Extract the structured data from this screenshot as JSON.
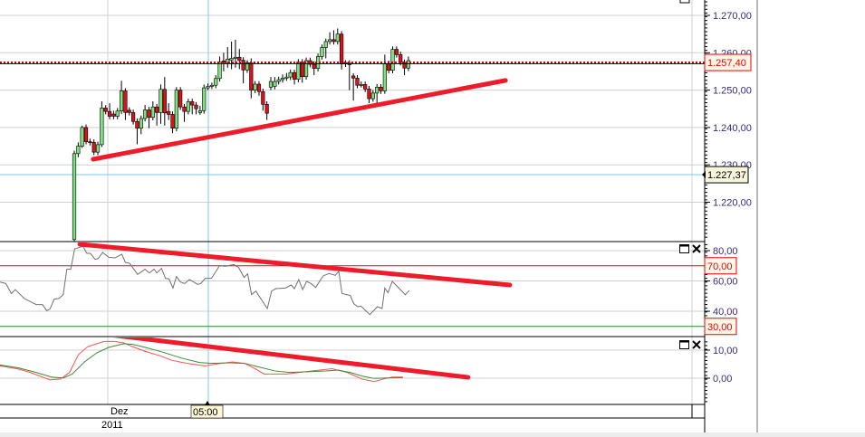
{
  "colors": {
    "up_candle": "#80e080",
    "down_candle": "#e0101a",
    "trendline": "#ee1c2a",
    "last_price_line": "#cc0000",
    "crosshair": "#7ec8ea",
    "rsi_line": "#707070",
    "rsi_upper": "#ee0000",
    "rsi_lower": "#228b22",
    "macd_line": "#ff5050",
    "signal_line": "#3a8a3a",
    "tick_text": "#3a2a7a",
    "grid": "#d0d0d0"
  },
  "icons": {
    "maximize": "maximize-icon",
    "close": "close-icon"
  },
  "xaxis": {
    "month_label": "Dez",
    "crosshair_time": "05:00",
    "year_label": "2011"
  },
  "chart_data": [
    {
      "type": "candlestick",
      "title": "",
      "x": "bar index",
      "ylim": [
        1210,
        1275
      ],
      "grid": true,
      "yticks": [
        {
          "value": 1270,
          "label": "1.270,00"
        },
        {
          "value": 1260,
          "label": "1.260,00"
        },
        {
          "value": 1250,
          "label": "1.250,00"
        },
        {
          "value": 1240,
          "label": "1.240,00"
        },
        {
          "value": 1230,
          "label": "1.230,00"
        },
        {
          "value": 1220,
          "label": "1.220,00"
        }
      ],
      "last_price": {
        "value": 1257.4,
        "label": "1.257,40"
      },
      "crosshair_price": {
        "value": 1227.37,
        "label": "1.227,37"
      },
      "trendline": {
        "from": [
          4.8,
          1231.5
        ],
        "to": [
          109.7,
          1252.6
        ]
      },
      "ohlc": [
        [
          1210,
          1233.8,
          1209,
          1233
        ],
        [
          1233,
          1236,
          1232,
          1235
        ],
        [
          1235,
          1240.5,
          1234.5,
          1240
        ],
        [
          1240,
          1240.8,
          1235.5,
          1236.2
        ],
        [
          1236.2,
          1237,
          1235.2,
          1236
        ],
        [
          1236,
          1236.8,
          1232.6,
          1233.4
        ],
        [
          1233.4,
          1236.2,
          1232.6,
          1235.4
        ],
        [
          1235.4,
          1247,
          1234.8,
          1245.2
        ],
        [
          1245.2,
          1246,
          1243.5,
          1244.3
        ],
        [
          1244.3,
          1246.5,
          1242.2,
          1243
        ],
        [
          1243.6,
          1244.5,
          1242.2,
          1243
        ],
        [
          1243,
          1245.2,
          1242.2,
          1244.4
        ],
        [
          1244.4,
          1252.5,
          1243.6,
          1249.8
        ],
        [
          1249.8,
          1250.5,
          1242,
          1244
        ],
        [
          1244.6,
          1245.4,
          1243.2,
          1244
        ],
        [
          1244,
          1244.8,
          1240.8,
          1241.6
        ],
        [
          1241.6,
          1242.4,
          1235.5,
          1239.8
        ],
        [
          1239.8,
          1243.2,
          1238.2,
          1242.4
        ],
        [
          1242.4,
          1246,
          1241.6,
          1244.7
        ],
        [
          1244.7,
          1245.5,
          1239.8,
          1242.7
        ],
        [
          1242.7,
          1247,
          1241.9,
          1245.5
        ],
        [
          1245.5,
          1246.3,
          1240.5,
          1244
        ],
        [
          1244,
          1251.5,
          1241,
          1250.2
        ],
        [
          1250.2,
          1253.5,
          1240.5,
          1243.9
        ],
        [
          1244.3,
          1246.5,
          1242,
          1243.5
        ],
        [
          1243.5,
          1244.3,
          1238.5,
          1239.8
        ],
        [
          1239.8,
          1250.8,
          1239,
          1250
        ],
        [
          1250,
          1250.8,
          1244.7,
          1245.5
        ],
        [
          1245.5,
          1246.3,
          1241.5,
          1244.3
        ],
        [
          1244.3,
          1247.7,
          1243.5,
          1246.9
        ],
        [
          1246.9,
          1247.7,
          1243.5,
          1246
        ],
        [
          1246,
          1246.8,
          1243.5,
          1245
        ],
        [
          1244,
          1245.8,
          1243.4,
          1244.5
        ],
        [
          1244.5,
          1251.5,
          1243.7,
          1250.6
        ],
        [
          1250.6,
          1251.8,
          1250,
          1251
        ],
        [
          1251,
          1252,
          1250.3,
          1251.3
        ],
        [
          1251.3,
          1254,
          1250.5,
          1253.1
        ],
        [
          1253.1,
          1259,
          1252.3,
          1257.5
        ],
        [
          1257.8,
          1260,
          1255,
          1257.4
        ],
        [
          1257.4,
          1261.5,
          1256,
          1258.3
        ],
        [
          1258,
          1263,
          1255.6,
          1258.5
        ],
        [
          1258.5,
          1263.5,
          1256,
          1258.8
        ],
        [
          1258.8,
          1261,
          1255.6,
          1258
        ],
        [
          1258,
          1258.8,
          1251.8,
          1255.4
        ],
        [
          1255.4,
          1258,
          1254.6,
          1257.3
        ],
        [
          1257.3,
          1258.5,
          1247.8,
          1250
        ],
        [
          1250,
          1252.4,
          1249.2,
          1251.6
        ],
        [
          1251.6,
          1252.4,
          1248.5,
          1249.6
        ],
        [
          1249.6,
          1250.4,
          1244.5,
          1246.2
        ],
        [
          1246.2,
          1247,
          1242,
          1243.8
        ],
        [
          1250.8,
          1253.5,
          1250,
          1252.3
        ],
        [
          1251,
          1253.5,
          1250.2,
          1252.3
        ],
        [
          1252.3,
          1253.6,
          1251.5,
          1252.8
        ],
        [
          1252.8,
          1254.2,
          1252,
          1253.2
        ],
        [
          1253.2,
          1254.6,
          1252.5,
          1253.5
        ],
        [
          1253.5,
          1255.5,
          1252.7,
          1254.7
        ],
        [
          1254.7,
          1255.5,
          1251.5,
          1252.9
        ],
        [
          1252.9,
          1258.3,
          1252.1,
          1257.5
        ],
        [
          1257.5,
          1258.3,
          1252,
          1253.6
        ],
        [
          1253.6,
          1258.7,
          1252.8,
          1257.9
        ],
        [
          1257.9,
          1258.7,
          1256.1,
          1256.9
        ],
        [
          1256.9,
          1257.7,
          1254,
          1255.8
        ],
        [
          1255.8,
          1259.8,
          1255,
          1259
        ],
        [
          1259,
          1262.2,
          1258.2,
          1261.4
        ],
        [
          1261.4,
          1263.8,
          1258.5,
          1263
        ],
        [
          1263,
          1265.5,
          1262.2,
          1263.5
        ],
        [
          1263.5,
          1266,
          1262.2,
          1263
        ],
        [
          1263,
          1266.5,
          1262.2,
          1265
        ],
        [
          1265,
          1265.8,
          1255.5,
          1257.1
        ],
        [
          1257.4,
          1258,
          1256.2,
          1257
        ],
        [
          1257.2,
          1258,
          1250,
          1256.8
        ],
        [
          1253.8,
          1254.5,
          1247.2,
          1253.2
        ],
        [
          1253.2,
          1254,
          1250.5,
          1251.3
        ],
        [
          1251.3,
          1252.3,
          1250.7,
          1251.5
        ],
        [
          1251.5,
          1252.3,
          1249.5,
          1250.3
        ],
        [
          1250.3,
          1251.1,
          1246.5,
          1247.7
        ],
        [
          1247.7,
          1250,
          1246.9,
          1249.2
        ],
        [
          1249.2,
          1251.6,
          1246.5,
          1250.8
        ],
        [
          1250.8,
          1251.6,
          1249,
          1249.8
        ],
        [
          1249.8,
          1259.5,
          1249,
          1257.1
        ],
        [
          1257.1,
          1257.9,
          1254.5,
          1255.3
        ],
        [
          1255.3,
          1261.7,
          1254.5,
          1260.9
        ],
        [
          1260.9,
          1261.7,
          1258.7,
          1259.5
        ],
        [
          1259.5,
          1260.3,
          1256.6,
          1257.4
        ],
        [
          1257.4,
          1258.2,
          1254,
          1255.9
        ],
        [
          1255.9,
          1259,
          1255.1,
          1257.9
        ]
      ]
    },
    {
      "type": "line",
      "title": "",
      "ylim": [
        20,
        85
      ],
      "yticks": [
        {
          "value": 80,
          "label": "80,00"
        },
        {
          "value": 60,
          "label": "60,00"
        },
        {
          "value": 40,
          "label": "40,00"
        }
      ],
      "upper_level": {
        "value": 70,
        "label": "70,00"
      },
      "lower_level": {
        "value": 30,
        "label": "30,00"
      },
      "trendline": {
        "from": [
          1.4,
          84.2
        ],
        "to": [
          110.8,
          57.3
        ]
      },
      "points": [
        [
          -18.9,
          59.3
        ],
        [
          -17.4,
          58.3
        ],
        [
          -16,
          51.7
        ],
        [
          -15,
          54.3
        ],
        [
          -12.7,
          48.4
        ],
        [
          -11.2,
          46.4
        ],
        [
          -9.7,
          44.4
        ],
        [
          -8.1,
          44.4
        ],
        [
          -7,
          40.4
        ],
        [
          -6.2,
          41.4
        ],
        [
          -5.1,
          48
        ],
        [
          -3.9,
          48.4
        ],
        [
          -2.8,
          51
        ],
        [
          -1.9,
          67.7
        ],
        [
          -0.9,
          67.7
        ],
        [
          0.1,
          81.2
        ],
        [
          1.4,
          82.2
        ],
        [
          2.2,
          82.8
        ],
        [
          3.2,
          78.2
        ],
        [
          4.1,
          78.2
        ],
        [
          5.3,
          74.2
        ],
        [
          6.1,
          74.8
        ],
        [
          7.2,
          78.8
        ],
        [
          8.8,
          75.6
        ],
        [
          10.3,
          75.2
        ],
        [
          12.1,
          77.6
        ],
        [
          13,
          72.2
        ],
        [
          14.1,
          71.6
        ],
        [
          16.1,
          64.3
        ],
        [
          18,
          67.7
        ],
        [
          19.1,
          65.3
        ],
        [
          20.3,
          67.7
        ],
        [
          21,
          65.3
        ],
        [
          22.2,
          68.3
        ],
        [
          23.2,
          61.7
        ],
        [
          24.1,
          61.3
        ],
        [
          25.1,
          55.3
        ],
        [
          26,
          62.9
        ],
        [
          27,
          59.3
        ],
        [
          28.1,
          58.3
        ],
        [
          29.3,
          60.9
        ],
        [
          31.4,
          57.7
        ],
        [
          32.2,
          58.3
        ],
        [
          33.3,
          61.7
        ],
        [
          34.9,
          61.7
        ],
        [
          37,
          70.2
        ],
        [
          38.3,
          69.6
        ],
        [
          40.6,
          70.8
        ],
        [
          41.8,
          68.9
        ],
        [
          43.2,
          62.3
        ],
        [
          44.1,
          64.7
        ],
        [
          45.1,
          51
        ],
        [
          46.2,
          53.3
        ],
        [
          49.1,
          41.8
        ],
        [
          50.2,
          53.3
        ],
        [
          51.3,
          54.9
        ],
        [
          53.7,
          55.3
        ],
        [
          55.2,
          57.3
        ],
        [
          56,
          54.9
        ],
        [
          57.1,
          60.9
        ],
        [
          58.1,
          54.3
        ],
        [
          59.1,
          59.7
        ],
        [
          60.2,
          58.3
        ],
        [
          61.4,
          55.7
        ],
        [
          63.3,
          63.3
        ],
        [
          64.8,
          64.9
        ],
        [
          66.4,
          63.7
        ],
        [
          67.3,
          66.3
        ],
        [
          68.1,
          51.7
        ],
        [
          70.2,
          50.4
        ],
        [
          71.1,
          45
        ],
        [
          72.1,
          43
        ],
        [
          72.9,
          43.4
        ],
        [
          75.2,
          37.8
        ],
        [
          77.1,
          43
        ],
        [
          78.3,
          41.8
        ],
        [
          79,
          55.3
        ],
        [
          79.8,
          52.3
        ],
        [
          80.9,
          59.7
        ],
        [
          84.2,
          50.9
        ],
        [
          85.2,
          53.7
        ]
      ]
    },
    {
      "type": "line",
      "title": "",
      "ylim": [
        -9,
        15
      ],
      "yticks": [
        {
          "value": 10,
          "label": "10,00"
        },
        {
          "value": 0,
          "label": "0,00"
        }
      ],
      "trendline": {
        "from": [
          8.8,
          15.5
        ],
        "to": [
          100.2,
          0.3
        ]
      },
      "series": [
        {
          "role": "macd",
          "points": [
            [
              -18.9,
              4.4
            ],
            [
              -14.3,
              3.3
            ],
            [
              -11.2,
              2.05
            ],
            [
              -6.2,
              -0.6
            ],
            [
              -3.5,
              -0.3
            ],
            [
              -1.2,
              2.05
            ],
            [
              1.1,
              8.5
            ],
            [
              3.4,
              11.2
            ],
            [
              5.7,
              12.3
            ],
            [
              7.6,
              13.1
            ],
            [
              10.3,
              13.1
            ],
            [
              12.6,
              12.6
            ],
            [
              14.9,
              11.2
            ],
            [
              18,
              9.6
            ],
            [
              21.8,
              8
            ],
            [
              24.9,
              6.35
            ],
            [
              28.7,
              5.3
            ],
            [
              33.3,
              4.4
            ],
            [
              36.4,
              5.1
            ],
            [
              40.2,
              5.8
            ],
            [
              43.3,
              5.3
            ],
            [
              45.6,
              3.7
            ],
            [
              48.3,
              1.5
            ],
            [
              54,
              1.5
            ],
            [
              58.7,
              2.3
            ],
            [
              61.7,
              2.8
            ],
            [
              65.6,
              3.4
            ],
            [
              69.4,
              2.05
            ],
            [
              73.2,
              -0.3
            ],
            [
              76.3,
              -1.2
            ],
            [
              78.6,
              -0.3
            ],
            [
              80.9,
              0.4
            ],
            [
              83.6,
              0.4
            ]
          ]
        },
        {
          "role": "signal",
          "points": [
            [
              -18.9,
              4.7
            ],
            [
              -14.3,
              3.7
            ],
            [
              -9.7,
              2.05
            ],
            [
              -5.8,
              0.4
            ],
            [
              -2.8,
              0.1
            ],
            [
              -0.5,
              1.5
            ],
            [
              2.6,
              5.8
            ],
            [
              5.7,
              9
            ],
            [
              8.8,
              11
            ],
            [
              12.6,
              12.3
            ],
            [
              14.9,
              12.05
            ],
            [
              18,
              11
            ],
            [
              22.6,
              9.25
            ],
            [
              27.2,
              7.2
            ],
            [
              31.8,
              5.6
            ],
            [
              34.9,
              5.3
            ],
            [
              39.5,
              5.5
            ],
            [
              43.3,
              5.3
            ],
            [
              46.4,
              4.2
            ],
            [
              51,
              2.6
            ],
            [
              54.8,
              2.05
            ],
            [
              59.4,
              2.3
            ],
            [
              64,
              2.6
            ],
            [
              67.1,
              2.9
            ],
            [
              70.2,
              2.05
            ],
            [
              73.2,
              0.75
            ],
            [
              76.3,
              -0.1
            ],
            [
              79.4,
              0.1
            ],
            [
              83.6,
              0.2
            ]
          ]
        }
      ]
    }
  ]
}
